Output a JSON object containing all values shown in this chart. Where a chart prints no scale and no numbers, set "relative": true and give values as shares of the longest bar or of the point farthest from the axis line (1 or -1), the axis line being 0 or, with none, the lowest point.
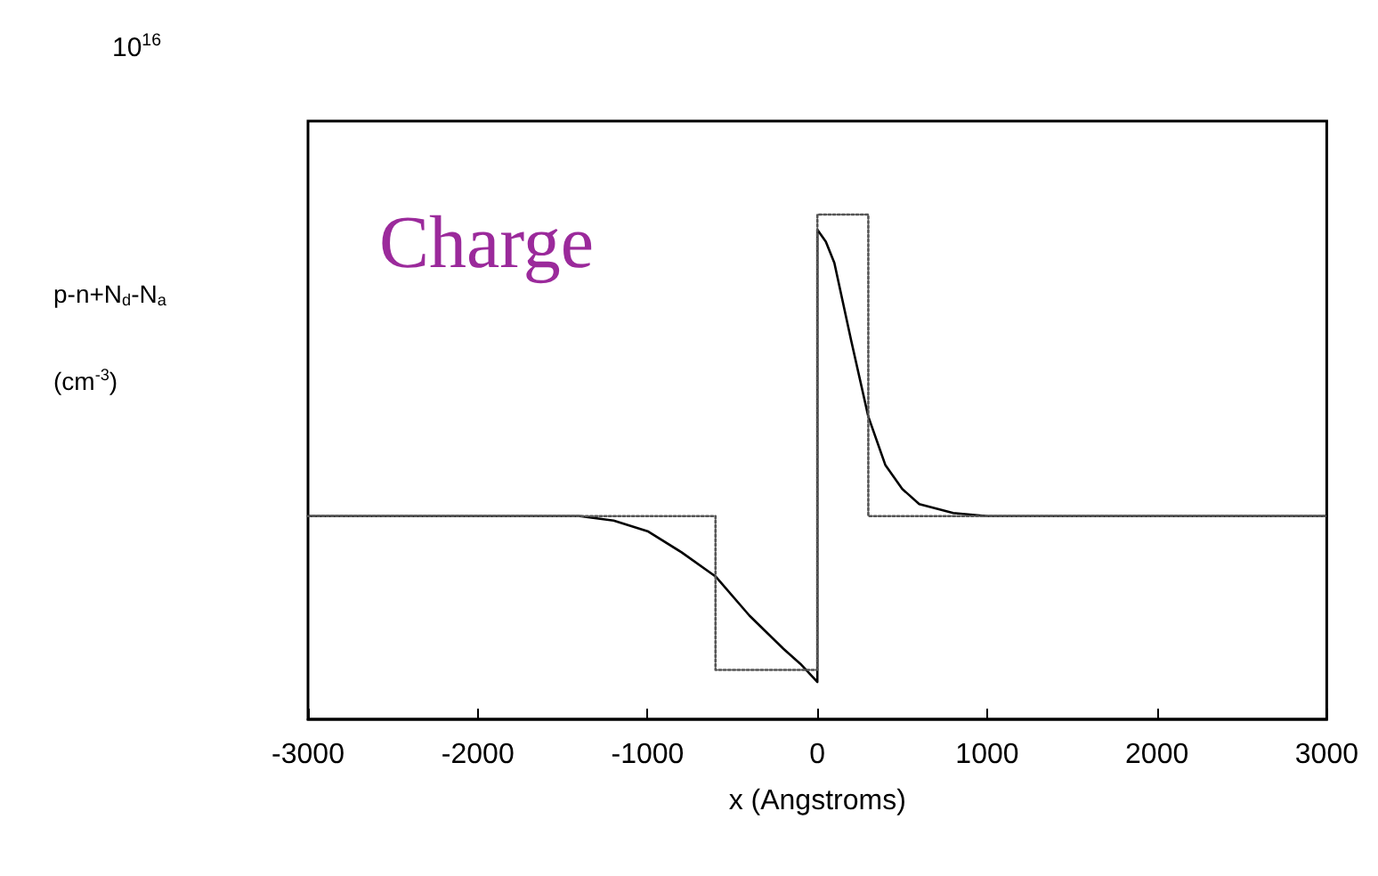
{
  "chart_data": {
    "type": "line",
    "relative": true,
    "xlabel": "x (Angstroms)",
    "ylabel": "p-n+N$_{d}$-N$_{a}$ (cm$^{-3}$)",
    "annotations": [
      "10$^{16}$",
      "Charge"
    ],
    "xlim": [
      -3000,
      3000
    ],
    "xticks": [
      -3000,
      -2000,
      -1000,
      0,
      1000,
      2000,
      3000
    ],
    "grid": false,
    "marker": "none",
    "series": [
      {
        "color": "#000000",
        "line_style": "solid",
        "x": [
          -3000,
          -1400,
          -1200,
          -1000,
          -800,
          -600,
          -400,
          -200,
          -100,
          0,
          0,
          50,
          100,
          200,
          300,
          400,
          500,
          600,
          800,
          1000,
          3000
        ],
        "values": [
          0,
          0,
          -0.015,
          -0.05,
          -0.12,
          -0.2,
          -0.33,
          -0.44,
          -0.49,
          -0.55,
          0.95,
          0.91,
          0.84,
          0.58,
          0.33,
          0.17,
          0.09,
          0.04,
          0.01,
          0,
          0
        ]
      },
      {
        "color": "#555555",
        "line_style": "dotted",
        "x": [
          -3000,
          -600,
          -600,
          0,
          0,
          300,
          300,
          3000
        ],
        "values": [
          0,
          0,
          -0.51,
          -0.51,
          1,
          1,
          0,
          0
        ]
      }
    ]
  }
}
